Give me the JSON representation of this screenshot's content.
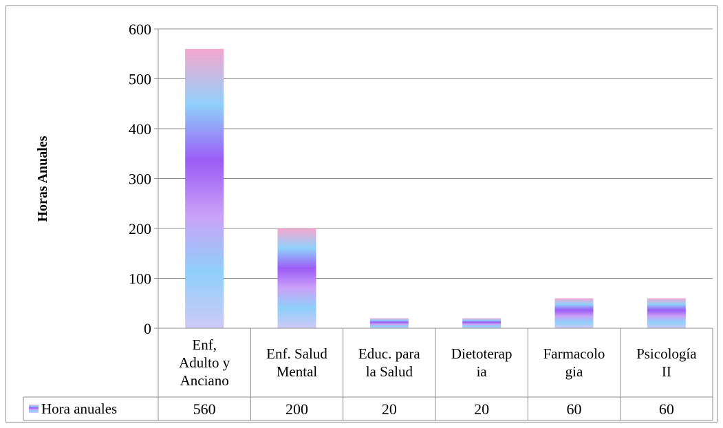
{
  "chart_data": {
    "type": "bar",
    "title": "",
    "xlabel": "",
    "ylabel": "Horas Anuales",
    "ylim": [
      0,
      600
    ],
    "yticks": [
      "0",
      "100",
      "200",
      "300",
      "400",
      "500",
      "600"
    ],
    "grid": true,
    "legend_position": "data-table-left",
    "categories": [
      [
        "Enf,",
        "Adulto y",
        "Anciano"
      ],
      [
        "Enf. Salud",
        "Mental"
      ],
      [
        "Educ. para",
        "la Salud"
      ],
      [
        "Dietoterap",
        "ia"
      ],
      [
        "Farmacolo",
        "gia"
      ],
      [
        "Psicología",
        "II"
      ]
    ],
    "series": [
      {
        "name": "Hora anuales",
        "values": [
          560,
          200,
          20,
          20,
          60,
          60
        ],
        "value_labels": [
          "560",
          "200",
          "20",
          "20",
          "60",
          "60"
        ]
      }
    ],
    "colors": {
      "gradient": [
        "#f4a7cf",
        "#8fd0fa",
        "#9b5cf5",
        "#caa2f7",
        "#8fd0fa",
        "#cfc9f6"
      ],
      "grid": "#8c8c8c",
      "axis": "#8c8c8c",
      "text": "#000000"
    }
  }
}
